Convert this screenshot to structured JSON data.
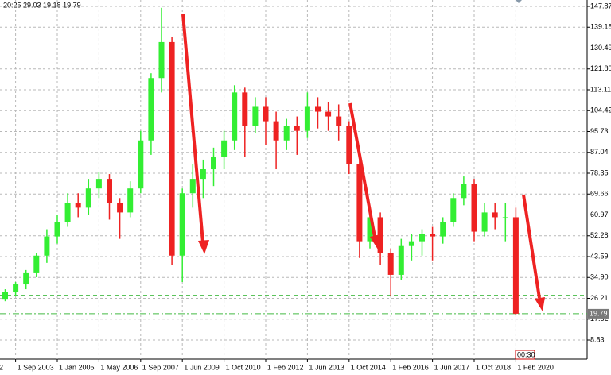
{
  "chart_data": {
    "type": "candlestick",
    "info": "20:25 29.03 19.18 19.79",
    "x_edge_label": "2",
    "time_marker": "00:30",
    "categories": [
      null,
      "1 Sep 2003",
      null,
      null,
      null,
      "1 Jan 2005",
      null,
      null,
      null,
      "1 May 2006",
      null,
      null,
      null,
      "1 Sep 2007",
      null,
      null,
      null,
      "1 Jun 2009",
      null,
      null,
      null,
      "1 Oct 2010",
      null,
      null,
      null,
      "1 Feb 2012",
      null,
      null,
      null,
      "1 Jun 2013",
      null,
      null,
      null,
      "1 Oct 2014",
      null,
      null,
      null,
      "1 Feb 2016",
      null,
      null,
      null,
      "1 Jun 2017",
      null,
      null,
      null,
      "1 Oct 2018",
      null,
      null,
      null,
      "1 Feb 2020",
      null,
      null,
      null,
      null,
      null,
      null
    ],
    "open": [
      26,
      29,
      32,
      37,
      44,
      52,
      58,
      66,
      64,
      72,
      76,
      66,
      62,
      72,
      92,
      118,
      133,
      44,
      70,
      76,
      80,
      85,
      92,
      112,
      98,
      106,
      100,
      92,
      98,
      96,
      106,
      104,
      102,
      98,
      82,
      50,
      60,
      45,
      36,
      48,
      50,
      53,
      52,
      58,
      68,
      74,
      54,
      62,
      60,
      60,
      null,
      null,
      null,
      null,
      null,
      null
    ],
    "high": [
      30,
      33,
      38,
      45,
      55,
      61,
      70,
      70,
      76,
      79,
      78,
      68,
      75,
      96,
      120,
      147.27,
      135,
      72,
      82,
      84,
      89,
      96,
      115,
      114,
      110,
      110,
      104,
      101,
      102,
      112,
      110,
      108,
      107,
      100,
      84,
      62,
      62,
      47,
      51,
      53,
      55,
      56,
      60,
      70,
      77,
      76,
      66,
      66,
      66,
      64,
      null,
      null,
      null,
      null,
      null,
      null
    ],
    "low": [
      25,
      27,
      30,
      35,
      41,
      49,
      56,
      60,
      61,
      68,
      59,
      51,
      60,
      70,
      86,
      112,
      40,
      33,
      64,
      68,
      73,
      80,
      88,
      85,
      95,
      90,
      80,
      88,
      86,
      93,
      97,
      96,
      92,
      78,
      43,
      47,
      40,
      27,
      34,
      42,
      44,
      42,
      49,
      56,
      65,
      50,
      52,
      55,
      50,
      19.18,
      null,
      null,
      null,
      null,
      null,
      null
    ],
    "close": [
      29,
      32,
      37,
      44,
      52,
      58,
      66,
      64,
      72,
      76,
      66,
      62,
      72,
      92,
      118,
      133,
      44,
      70,
      76,
      80,
      85,
      92,
      112,
      98,
      106,
      100,
      92,
      98,
      96,
      106,
      104,
      102,
      98,
      82,
      50,
      60,
      45,
      36,
      48,
      50,
      53,
      52,
      58,
      68,
      74,
      54,
      62,
      60,
      60,
      19.79,
      null,
      null,
      null,
      null,
      null,
      null
    ],
    "up_color": "#33ee33",
    "down_color": "#ee2222",
    "ylim": [
      0.89,
      150.52
    ],
    "yticks": [
      147.87,
      139.18,
      130.49,
      {
        "value": 121.8,
        "label": "121.80"
      },
      113.11,
      104.42,
      95.73,
      87.04,
      78.35,
      69.66,
      60.97,
      52.28,
      43.59,
      {
        "value": 34.9,
        "label": "34.90"
      },
      26.21,
      17.52,
      8.83
    ],
    "levels": [
      27.5,
      19.79
    ],
    "last_price": 19.79,
    "grid": true
  }
}
